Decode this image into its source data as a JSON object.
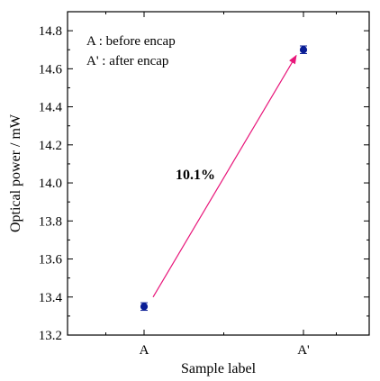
{
  "chart_data": {
    "type": "scatter",
    "title": "",
    "xlabel": "Sample label",
    "ylabel": "Optical power / mW",
    "categories": [
      "A",
      "A'"
    ],
    "ylim": [
      13.2,
      14.9
    ],
    "yticks": [
      "13.2",
      "13.4",
      "13.6",
      "13.8",
      "14.0",
      "14.2",
      "14.4",
      "14.6",
      "14.8"
    ],
    "series": [
      {
        "values": [
          13.35,
          14.7
        ],
        "errors": [
          0.02,
          0.02
        ],
        "color": "#0a1e96"
      }
    ],
    "legend_placement": "top-left",
    "legend": [
      "A : before encap",
      "A' : after encap"
    ],
    "annotation": {
      "text": "10.1%",
      "arrow_from": {
        "x": "A",
        "y": 13.4
      },
      "arrow_to": {
        "x": "A'",
        "y": 14.67
      },
      "arrow_color": "#e8167a",
      "label_x": "A",
      "label_y": 14.02
    },
    "grid": false
  }
}
